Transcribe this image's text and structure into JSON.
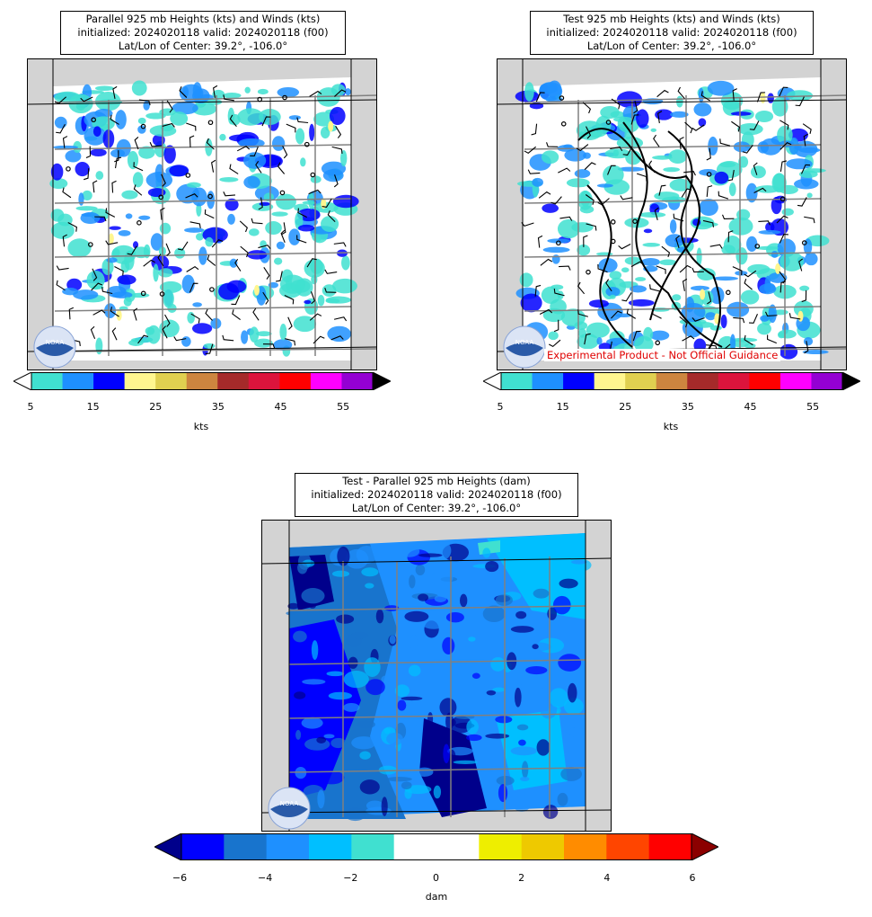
{
  "panels": {
    "parallel": {
      "title_line1": "Parallel 925 mb Heights (kts) and Winds (kts)",
      "title_line2": "initialized: 2024020118 valid: 2024020118 (f00)",
      "title_line3": "Lat/Lon of Center: 39.2°, -106.0°"
    },
    "test": {
      "title_line1": "Test 925 mb Heights (kts) and Winds (kts)",
      "title_line2": "initialized: 2024020118 valid: 2024020118 (f00)",
      "title_line3": "Lat/Lon of Center: 39.2°, -106.0°",
      "watermark": "Experimental Product - Not Official Guidance"
    },
    "difference": {
      "title_line1": "Test - Parallel 925 mb Heights (dam)",
      "title_line2": "initialized: 2024020118 valid: 2024020118 (f00)",
      "title_line3": "Lat/Lon of Center: 39.2°, -106.0°"
    }
  },
  "wind_colorbar": {
    "units": "kts",
    "tick_labels": [
      "5",
      "15",
      "25",
      "35",
      "45",
      "55"
    ],
    "bounds": [
      5,
      60
    ],
    "colors": [
      "#40e0d0",
      "#1e90ff",
      "#0000ff",
      "#fff68f",
      "#e0d050",
      "#cd853f",
      "#a52a2a",
      "#dc143c",
      "#ff0000",
      "#ff00ff",
      "#9400d3"
    ],
    "under_color": "#ffffff",
    "over_color": "#000000"
  },
  "diff_colorbar": {
    "units": "dam",
    "tick_labels": [
      "−6",
      "−4",
      "−2",
      "0",
      "2",
      "4",
      "6"
    ],
    "bounds": [
      -6,
      6
    ],
    "colors": [
      "#0000ff",
      "#1874cd",
      "#1e90ff",
      "#00bfff",
      "#40e0d0",
      "#ffffff",
      "#ffffff",
      "#eeee00",
      "#eec900",
      "#ff8c00",
      "#ff4500",
      "#ff0000"
    ],
    "under_color": "#00008b",
    "over_color": "#8b0000"
  },
  "logo": {
    "text": "NOAA"
  }
}
